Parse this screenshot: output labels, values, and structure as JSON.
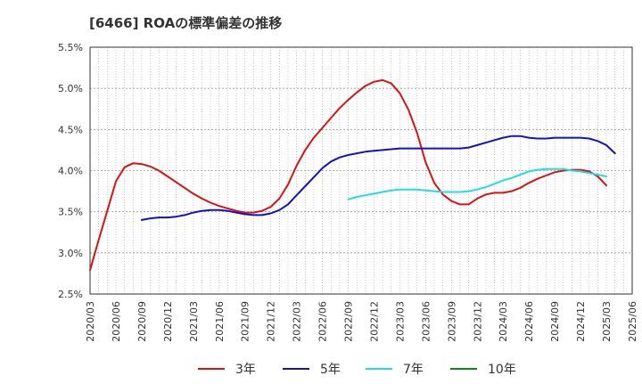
{
  "chart_data": {
    "type": "line",
    "title": "[6466]  ROAの標準偏差の推移",
    "xlabel": "",
    "ylabel": "",
    "ylim": [
      2.5,
      5.5
    ],
    "yticks": [
      "2.5%",
      "3.0%",
      "3.5%",
      "4.0%",
      "4.5%",
      "5.0%",
      "5.5%"
    ],
    "yticks_values": [
      2.5,
      3.0,
      3.5,
      4.0,
      4.5,
      5.0,
      5.5
    ],
    "grid": true,
    "legend_position": "bottom",
    "categories": [
      "2020/03",
      "2020/04",
      "2020/05",
      "2020/06",
      "2020/07",
      "2020/08",
      "2020/09",
      "2020/10",
      "2020/11",
      "2020/12",
      "2021/01",
      "2021/02",
      "2021/03",
      "2021/04",
      "2021/05",
      "2021/06",
      "2021/07",
      "2021/08",
      "2021/09",
      "2021/10",
      "2021/11",
      "2021/12",
      "2022/01",
      "2022/02",
      "2022/03",
      "2022/04",
      "2022/05",
      "2022/06",
      "2022/07",
      "2022/08",
      "2022/09",
      "2022/10",
      "2022/11",
      "2022/12",
      "2023/01",
      "2023/02",
      "2023/03",
      "2023/04",
      "2023/05",
      "2023/06",
      "2023/07",
      "2023/08",
      "2023/09",
      "2023/10",
      "2023/11",
      "2023/12",
      "2024/01",
      "2024/02",
      "2024/03",
      "2024/04",
      "2024/05",
      "2024/06",
      "2024/07",
      "2024/08",
      "2024/09",
      "2024/10",
      "2024/11",
      "2024/12",
      "2025/01",
      "2025/02",
      "2025/03",
      "2025/04",
      "2025/05",
      "2025/06"
    ],
    "x_tick_labels": [
      "2020/03",
      "2020/06",
      "2020/09",
      "2020/12",
      "2021/03",
      "2021/06",
      "2021/09",
      "2021/12",
      "2022/03",
      "2022/06",
      "2022/09",
      "2022/12",
      "2023/03",
      "2023/06",
      "2023/09",
      "2023/12",
      "2024/03",
      "2024/06",
      "2024/09",
      "2024/12",
      "2025/03",
      "2025/06"
    ],
    "series": [
      {
        "name": "3年",
        "color": "#dd1111",
        "values": [
          2.79,
          3.16,
          3.51,
          3.87,
          4.04,
          4.09,
          4.08,
          4.05,
          4.0,
          3.93,
          3.86,
          3.79,
          3.72,
          3.66,
          3.61,
          3.57,
          3.54,
          3.51,
          3.49,
          3.49,
          3.51,
          3.56,
          3.66,
          3.83,
          4.06,
          4.25,
          4.4,
          4.52,
          4.64,
          4.76,
          4.86,
          4.95,
          5.03,
          5.08,
          5.1,
          5.06,
          4.94,
          4.74,
          4.46,
          4.1,
          3.85,
          3.71,
          3.63,
          3.59,
          3.59,
          3.66,
          3.71,
          3.73,
          3.73,
          3.75,
          3.79,
          3.85,
          3.9,
          3.94,
          3.98,
          4.0,
          4.01,
          4.01,
          3.99,
          3.93,
          3.82,
          null,
          null,
          null
        ]
      },
      {
        "name": "5年",
        "color": "#1111cc",
        "values": [
          null,
          null,
          null,
          null,
          null,
          null,
          3.4,
          3.42,
          3.43,
          3.43,
          3.44,
          3.46,
          3.49,
          3.51,
          3.52,
          3.52,
          3.51,
          3.49,
          3.47,
          3.46,
          3.46,
          3.48,
          3.52,
          3.59,
          3.7,
          3.81,
          3.92,
          4.03,
          4.11,
          4.16,
          4.19,
          4.21,
          4.23,
          4.24,
          4.25,
          4.26,
          4.27,
          4.27,
          4.27,
          4.27,
          4.27,
          4.27,
          4.27,
          4.27,
          4.28,
          4.31,
          4.34,
          4.37,
          4.4,
          4.42,
          4.42,
          4.4,
          4.39,
          4.39,
          4.4,
          4.4,
          4.4,
          4.4,
          4.39,
          4.36,
          4.31,
          4.21,
          null,
          null
        ]
      },
      {
        "name": "7年",
        "color": "#22dddd",
        "values": [
          null,
          null,
          null,
          null,
          null,
          null,
          null,
          null,
          null,
          null,
          null,
          null,
          null,
          null,
          null,
          null,
          null,
          null,
          null,
          null,
          null,
          null,
          null,
          null,
          null,
          null,
          null,
          null,
          null,
          null,
          3.65,
          3.68,
          3.7,
          3.72,
          3.74,
          3.76,
          3.77,
          3.77,
          3.77,
          3.76,
          3.75,
          3.74,
          3.74,
          3.74,
          3.75,
          3.77,
          3.8,
          3.84,
          3.88,
          3.91,
          3.95,
          3.99,
          4.01,
          4.02,
          4.02,
          4.02,
          4.0,
          3.99,
          3.97,
          3.95,
          3.93,
          null,
          null,
          null
        ]
      },
      {
        "name": "10年",
        "color": "#118811",
        "values": [
          null,
          null,
          null,
          null,
          null,
          null,
          null,
          null,
          null,
          null,
          null,
          null,
          null,
          null,
          null,
          null,
          null,
          null,
          null,
          null,
          null,
          null,
          null,
          null,
          null,
          null,
          null,
          null,
          null,
          null,
          null,
          null,
          null,
          null,
          null,
          null,
          null,
          null,
          null,
          null,
          null,
          null,
          null,
          null,
          null,
          null,
          null,
          null,
          null,
          null,
          null,
          null,
          null,
          null,
          null,
          null,
          null,
          null,
          null,
          null,
          null,
          null,
          null,
          null
        ]
      }
    ]
  }
}
